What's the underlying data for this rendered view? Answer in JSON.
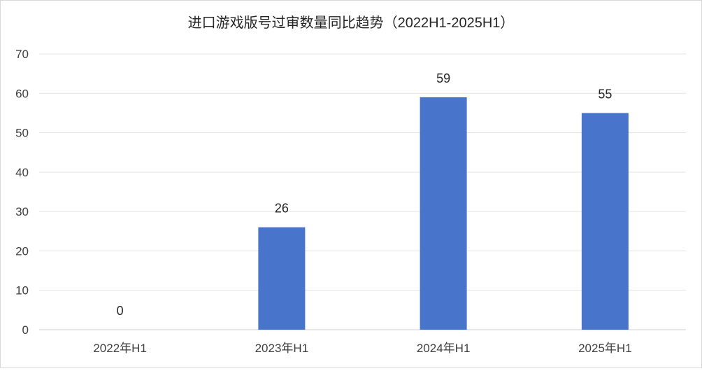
{
  "chart_data": {
    "type": "bar",
    "title": "进口游戏版号过审数量同比趋势（2022H1-2025H1）",
    "categories": [
      "2022年H1",
      "2023年H1",
      "2024年H1",
      "2025年H1"
    ],
    "series": [
      {
        "values": [
          0,
          26,
          59,
          55
        ],
        "color": "#4874CB"
      }
    ],
    "data_labels": [
      "0",
      "26",
      "59",
      "55"
    ],
    "yticks": [
      0,
      10,
      20,
      30,
      40,
      50,
      60,
      70
    ],
    "ylim": [
      0,
      70
    ],
    "grid": true,
    "legend": "none"
  }
}
